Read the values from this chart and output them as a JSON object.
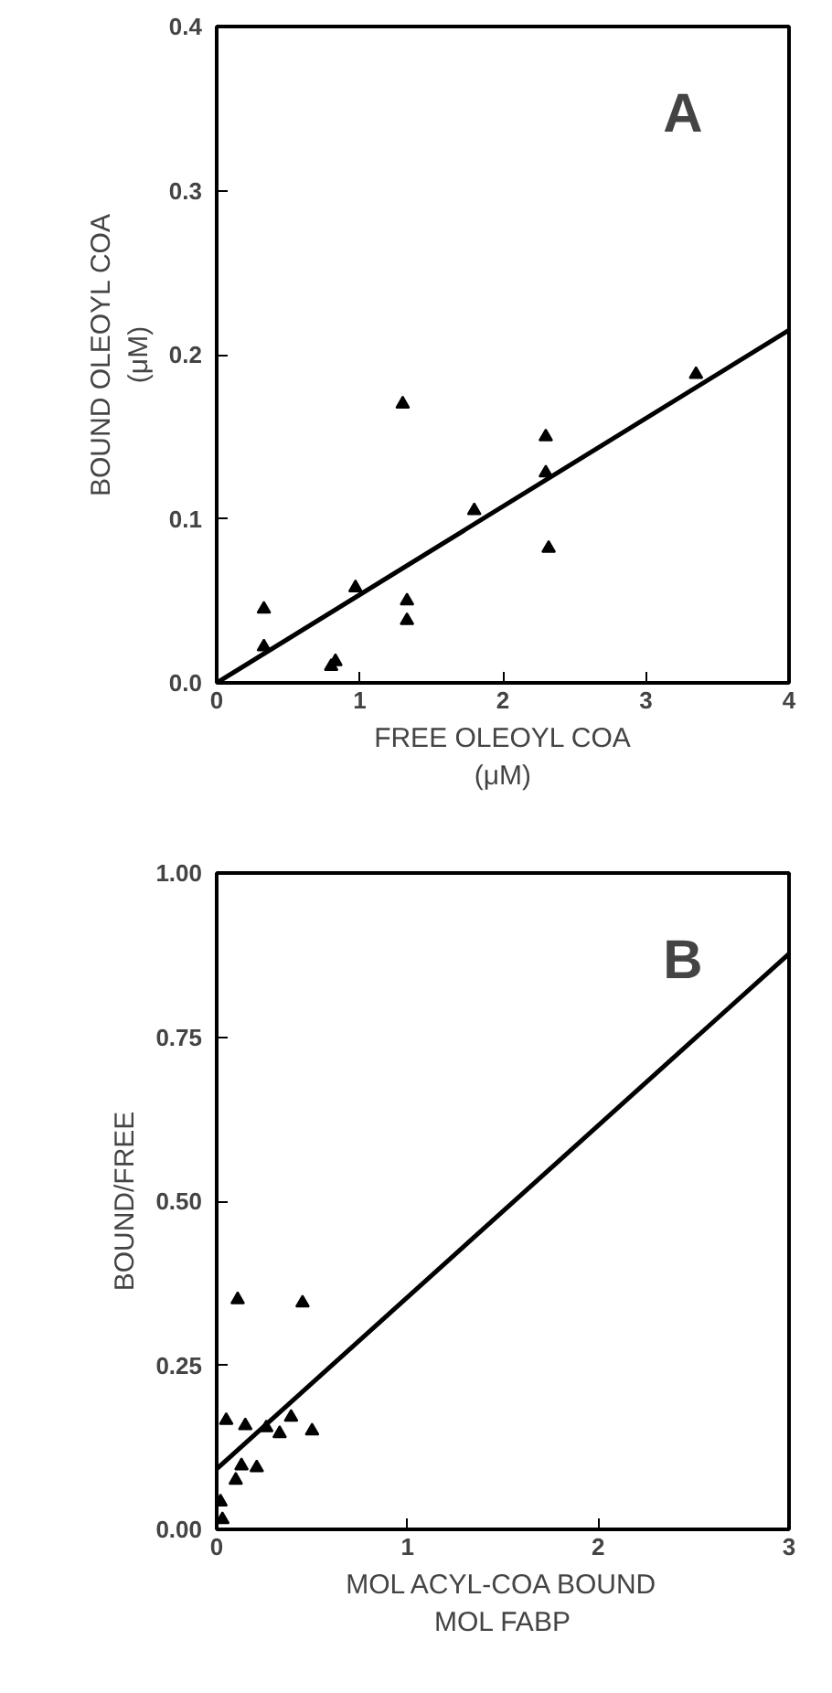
{
  "chart_data": [
    {
      "type": "scatter",
      "xlabel": "FREE OLEOYL COA\n(μM)",
      "ylabel": "BOUND OLEOYL COA\n(μM)",
      "annotations": [
        "A"
      ],
      "xlim": [
        0,
        4
      ],
      "ylim": [
        0,
        0.4
      ],
      "xticks": [
        0,
        1,
        2,
        3,
        4
      ],
      "yticks": [
        {
          "value": 0,
          "label": "0.0"
        },
        0.1,
        0.2,
        0.3,
        0.4
      ],
      "series": [
        {
          "marker": "triangle",
          "color": "#000000",
          "x": [
            0.33,
            0.33,
            0.8,
            0.83,
            0.97,
            1.3,
            1.33,
            1.33,
            1.8,
            2.3,
            2.3,
            2.32,
            3.35
          ],
          "values": [
            0.045,
            0.022,
            0.01,
            0.013,
            0.058,
            0.17,
            0.05,
            0.038,
            0.105,
            0.15,
            0.128,
            0.082,
            0.188
          ]
        },
        {
          "type": "line",
          "color": "#000000",
          "x": [
            0,
            4
          ],
          "values": [
            0,
            0.215
          ]
        }
      ]
    },
    {
      "type": "scatter",
      "xlabel": "MOL ACYL-COA BOUND\nMOL FABP",
      "ylabel": "BOUND/FREE",
      "annotations": [
        "B"
      ],
      "xlim": [
        0,
        3
      ],
      "ylim": [
        0,
        1
      ],
      "xticks": [
        0,
        1,
        2,
        3
      ],
      "yticks": [
        {
          "value": 0,
          "label": "0.00"
        },
        0.25,
        {
          "value": 0.5,
          "label": "0.50"
        },
        0.75,
        {
          "value": 1,
          "label": "1.00"
        }
      ],
      "series": [
        {
          "marker": "triangle",
          "color": "#000000",
          "x": [
            0.11,
            0.45,
            0.05,
            0.15,
            0.26,
            0.33,
            0.39,
            0.5,
            0.13,
            0.21,
            0.1,
            0.02,
            0.03
          ],
          "values": [
            0.35,
            0.345,
            0.166,
            0.158,
            0.155,
            0.146,
            0.171,
            0.15,
            0.097,
            0.094,
            0.075,
            0.042,
            0.015
          ]
        },
        {
          "type": "line",
          "color": "#000000",
          "x": [
            0,
            3
          ],
          "values": [
            0.092,
            0.877
          ]
        }
      ]
    }
  ]
}
